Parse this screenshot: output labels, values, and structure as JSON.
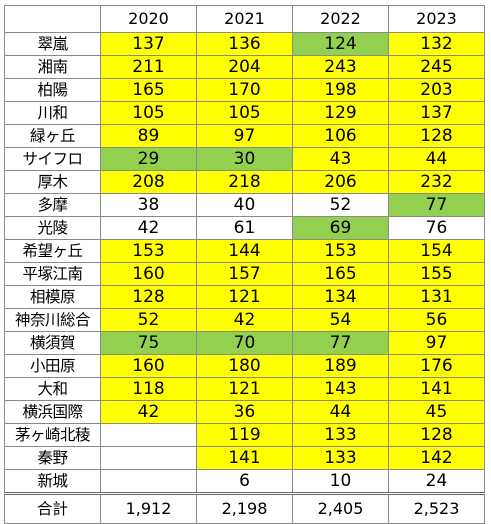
{
  "table": {
    "corner": "",
    "years": [
      "2020",
      "2021",
      "2022",
      "2023"
    ],
    "rows": [
      {
        "name": "翠嵐",
        "cells": [
          {
            "v": "137",
            "bg": "#ffff00"
          },
          {
            "v": "136",
            "bg": "#ffff00"
          },
          {
            "v": "124",
            "bg": "#92d050"
          },
          {
            "v": "132",
            "bg": "#ffff00"
          }
        ]
      },
      {
        "name": "湘南",
        "cells": [
          {
            "v": "211",
            "bg": "#ffff00"
          },
          {
            "v": "204",
            "bg": "#ffff00"
          },
          {
            "v": "243",
            "bg": "#ffff00"
          },
          {
            "v": "245",
            "bg": "#ffff00"
          }
        ]
      },
      {
        "name": "柏陽",
        "cells": [
          {
            "v": "165",
            "bg": "#ffff00"
          },
          {
            "v": "170",
            "bg": "#ffff00"
          },
          {
            "v": "198",
            "bg": "#ffff00"
          },
          {
            "v": "203",
            "bg": "#ffff00"
          }
        ]
      },
      {
        "name": "川和",
        "cells": [
          {
            "v": "105",
            "bg": "#ffff00"
          },
          {
            "v": "105",
            "bg": "#ffff00"
          },
          {
            "v": "129",
            "bg": "#ffff00"
          },
          {
            "v": "137",
            "bg": "#ffff00"
          }
        ]
      },
      {
        "name": "緑ヶ丘",
        "cells": [
          {
            "v": "89",
            "bg": "#ffff00"
          },
          {
            "v": "97",
            "bg": "#ffff00"
          },
          {
            "v": "106",
            "bg": "#ffff00"
          },
          {
            "v": "128",
            "bg": "#ffff00"
          }
        ]
      },
      {
        "name": "サイフロ",
        "cells": [
          {
            "v": "29",
            "bg": "#92d050"
          },
          {
            "v": "30",
            "bg": "#92d050"
          },
          {
            "v": "43",
            "bg": "#ffff00"
          },
          {
            "v": "44",
            "bg": "#ffff00"
          }
        ]
      },
      {
        "name": "厚木",
        "cells": [
          {
            "v": "208",
            "bg": "#ffff00"
          },
          {
            "v": "218",
            "bg": "#ffff00"
          },
          {
            "v": "206",
            "bg": "#ffff00"
          },
          {
            "v": "232",
            "bg": "#ffff00"
          }
        ]
      },
      {
        "name": "多摩",
        "cells": [
          {
            "v": "38",
            "bg": "#ffffff"
          },
          {
            "v": "40",
            "bg": "#ffffff"
          },
          {
            "v": "52",
            "bg": "#ffffff"
          },
          {
            "v": "77",
            "bg": "#92d050"
          }
        ]
      },
      {
        "name": "光陵",
        "cells": [
          {
            "v": "42",
            "bg": "#ffffff"
          },
          {
            "v": "61",
            "bg": "#ffffff"
          },
          {
            "v": "69",
            "bg": "#92d050"
          },
          {
            "v": "76",
            "bg": "#ffffff"
          }
        ]
      },
      {
        "name": "希望ヶ丘",
        "cells": [
          {
            "v": "153",
            "bg": "#ffff00"
          },
          {
            "v": "144",
            "bg": "#ffff00"
          },
          {
            "v": "153",
            "bg": "#ffff00"
          },
          {
            "v": "154",
            "bg": "#ffff00"
          }
        ]
      },
      {
        "name": "平塚江南",
        "cells": [
          {
            "v": "160",
            "bg": "#ffff00"
          },
          {
            "v": "157",
            "bg": "#ffff00"
          },
          {
            "v": "165",
            "bg": "#ffff00"
          },
          {
            "v": "155",
            "bg": "#ffff00"
          }
        ]
      },
      {
        "name": "相模原",
        "cells": [
          {
            "v": "128",
            "bg": "#ffff00"
          },
          {
            "v": "121",
            "bg": "#ffff00"
          },
          {
            "v": "134",
            "bg": "#ffff00"
          },
          {
            "v": "131",
            "bg": "#ffff00"
          }
        ]
      },
      {
        "name": "神奈川総合",
        "cells": [
          {
            "v": "52",
            "bg": "#ffff00"
          },
          {
            "v": "42",
            "bg": "#ffff00"
          },
          {
            "v": "54",
            "bg": "#ffff00"
          },
          {
            "v": "56",
            "bg": "#ffff00"
          }
        ]
      },
      {
        "name": "横須賀",
        "cells": [
          {
            "v": "75",
            "bg": "#92d050"
          },
          {
            "v": "70",
            "bg": "#92d050"
          },
          {
            "v": "77",
            "bg": "#92d050"
          },
          {
            "v": "97",
            "bg": "#ffff00"
          }
        ]
      },
      {
        "name": "小田原",
        "cells": [
          {
            "v": "160",
            "bg": "#ffff00"
          },
          {
            "v": "180",
            "bg": "#ffff00"
          },
          {
            "v": "189",
            "bg": "#ffff00"
          },
          {
            "v": "176",
            "bg": "#ffff00"
          }
        ]
      },
      {
        "name": "大和",
        "cells": [
          {
            "v": "118",
            "bg": "#ffff00"
          },
          {
            "v": "121",
            "bg": "#ffff00"
          },
          {
            "v": "143",
            "bg": "#ffff00"
          },
          {
            "v": "141",
            "bg": "#ffff00"
          }
        ]
      },
      {
        "name": "横浜国際",
        "cells": [
          {
            "v": "42",
            "bg": "#ffff00"
          },
          {
            "v": "36",
            "bg": "#ffff00"
          },
          {
            "v": "44",
            "bg": "#ffff00"
          },
          {
            "v": "45",
            "bg": "#ffff00"
          }
        ]
      },
      {
        "name": "茅ヶ崎北稜",
        "cells": [
          {
            "v": "",
            "bg": "#ffffff"
          },
          {
            "v": "119",
            "bg": "#ffff00"
          },
          {
            "v": "133",
            "bg": "#ffff00"
          },
          {
            "v": "128",
            "bg": "#ffff00"
          }
        ]
      },
      {
        "name": "秦野",
        "cells": [
          {
            "v": "",
            "bg": "#ffffff"
          },
          {
            "v": "141",
            "bg": "#ffff00"
          },
          {
            "v": "133",
            "bg": "#ffff00"
          },
          {
            "v": "142",
            "bg": "#ffff00"
          }
        ]
      },
      {
        "name": "新城",
        "cells": [
          {
            "v": "",
            "bg": "#ffffff"
          },
          {
            "v": "6",
            "bg": "#ffffff"
          },
          {
            "v": "10",
            "bg": "#ffffff"
          },
          {
            "v": "24",
            "bg": "#ffffff"
          }
        ]
      }
    ],
    "total": {
      "label": "合計",
      "values": [
        "1,912",
        "2,198",
        "2,405",
        "2,523"
      ]
    }
  }
}
